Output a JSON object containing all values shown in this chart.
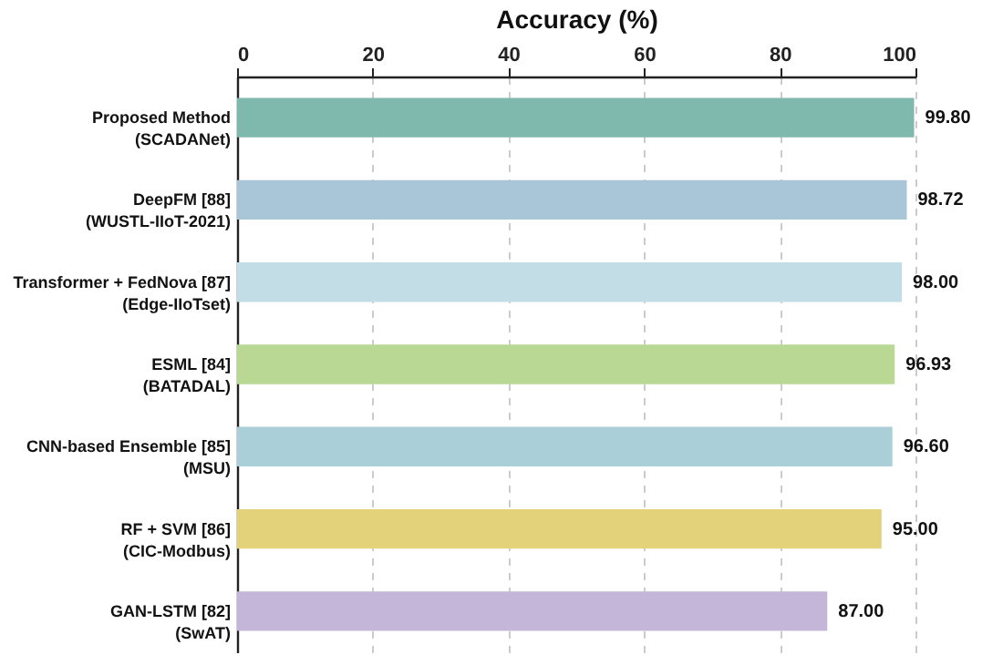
{
  "chart_data": {
    "type": "bar",
    "orientation": "horizontal",
    "xlabel": "Accuracy (%)",
    "categories": [
      "Proposed Method\n(SCADANet)",
      "DeepFM [88]\n(WUSTL-IIoT-2021)",
      "Transformer + FedNova [87]\n(Edge-IIoTset)",
      "ESML [84]\n(BATADAL)",
      "CNN-based Ensemble [85]\n(MSU)",
      "RF + SVM [86]\n(CIC-Modbus)",
      "GAN-LSTM [82]\n(SwAT)"
    ],
    "values": [
      99.8,
      98.72,
      98.0,
      96.93,
      96.6,
      95.0,
      87.0
    ],
    "value_labels": [
      "99.80",
      "98.72",
      "98.00",
      "96.93",
      "96.60",
      "95.00",
      "87.00"
    ],
    "colors": [
      "#7fb8ac",
      "#a8c6d8",
      "#c2dde6",
      "#b8d893",
      "#abcfd9",
      "#e4d27a",
      "#c4b6d8"
    ],
    "xlim": [
      0,
      100
    ],
    "xticks": [
      0,
      20,
      40,
      60,
      80,
      100
    ],
    "grid": "x"
  }
}
